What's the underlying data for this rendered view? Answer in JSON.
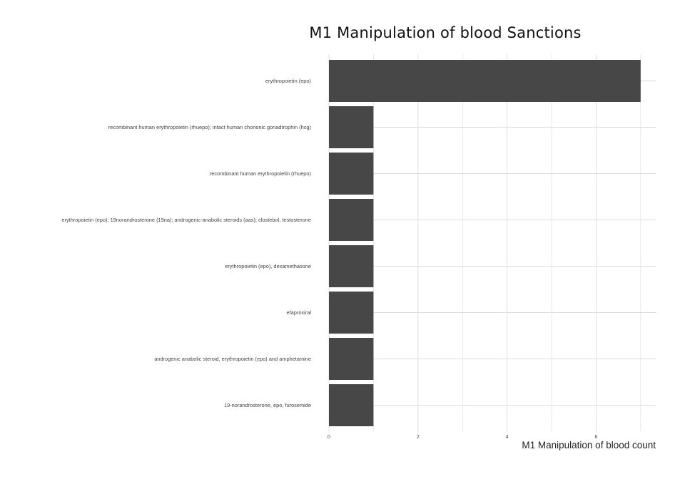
{
  "title": "M1 Manipulation of blood Sanctions",
  "chart_data": {
    "type": "bar",
    "orientation": "horizontal",
    "title": "M1 Manipulation of blood Sanctions",
    "xlabel": "M1 Manipulation of blood count",
    "ylabel": "",
    "categories": [
      "erythropoietin (epo)",
      "recombinant human erythropoietin (rhuepo); intact human chorionic gonadtrophin (hcg)",
      "recombinant human erythropoietin (rhuepo)",
      "erythropoietin (epo); 19⁠norandrosterone (19⁠na); androgenic-anabolic steroids (aas); clostebol, testosterone",
      "erythropoietin (epo), dexamethasone",
      "efaproxiral",
      "androgenic anabolic steroid,  erythropoietin (epo) and amphetamine",
      "19-norandrosterone, epo, furosemide"
    ],
    "values": [
      7,
      1,
      1,
      1,
      1,
      1,
      1,
      1
    ],
    "xlim": [
      0,
      7.3
    ],
    "xticks": [
      0,
      2,
      4,
      6
    ],
    "grid": true,
    "legend": "none",
    "bar_color": "#474747",
    "grid_color": "#dcdcdc"
  }
}
